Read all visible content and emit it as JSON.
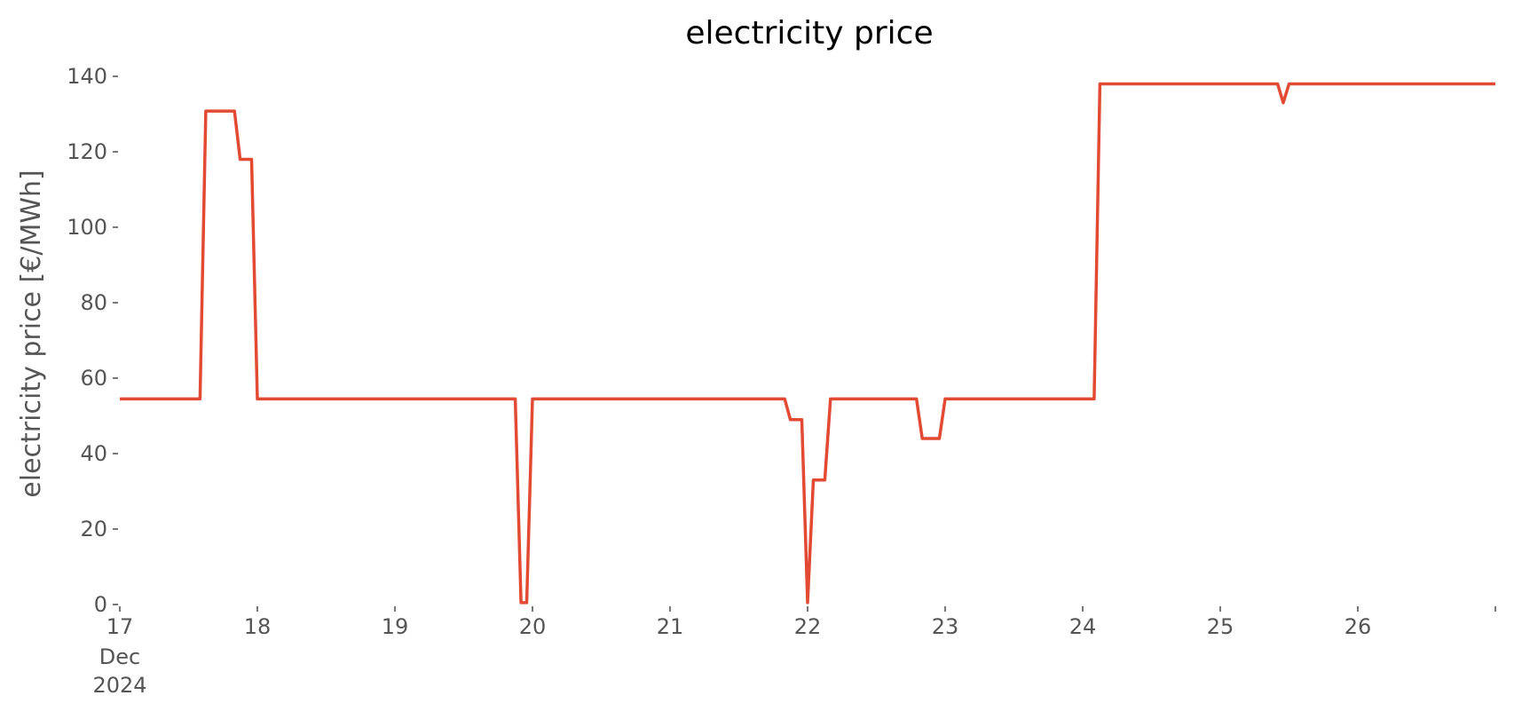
{
  "chart_data": {
    "type": "line",
    "title": "electricity price",
    "xlabel": "",
    "ylabel": "electricity price [€/MWh]",
    "ylim": [
      0,
      140
    ],
    "xlim": [
      "2024-12-17T00:00",
      "2024-12-27T00:00"
    ],
    "y_ticks": [
      0,
      20,
      40,
      60,
      80,
      100,
      120,
      140
    ],
    "x_ticks": [
      {
        "x": "2024-12-17T00:00",
        "label": "17",
        "sublabels": [
          "Dec",
          "2024"
        ]
      },
      {
        "x": "2024-12-18T00:00",
        "label": "18"
      },
      {
        "x": "2024-12-19T00:00",
        "label": "19"
      },
      {
        "x": "2024-12-20T00:00",
        "label": "20"
      },
      {
        "x": "2024-12-21T00:00",
        "label": "21"
      },
      {
        "x": "2024-12-22T00:00",
        "label": "22"
      },
      {
        "x": "2024-12-23T00:00",
        "label": "23"
      },
      {
        "x": "2024-12-24T00:00",
        "label": "24"
      },
      {
        "x": "2024-12-25T00:00",
        "label": "25"
      },
      {
        "x": "2024-12-26T00:00",
        "label": "26"
      },
      {
        "x": "2024-12-27T00:00",
        "label": ""
      }
    ],
    "grid": false,
    "series": [
      {
        "color": "#e24a33",
        "points": [
          {
            "x": "2024-12-17T00:00",
            "y": 54.5
          },
          {
            "x": "2024-12-17T14:00",
            "y": 54.5
          },
          {
            "x": "2024-12-17T15:00",
            "y": 130.8
          },
          {
            "x": "2024-12-17T20:00",
            "y": 130.8
          },
          {
            "x": "2024-12-17T21:00",
            "y": 118
          },
          {
            "x": "2024-12-17T23:00",
            "y": 118
          },
          {
            "x": "2024-12-18T00:00",
            "y": 54.5
          },
          {
            "x": "2024-12-19T21:00",
            "y": 54.5
          },
          {
            "x": "2024-12-19T22:00",
            "y": 0.5
          },
          {
            "x": "2024-12-19T23:00",
            "y": 0.5
          },
          {
            "x": "2024-12-20T00:00",
            "y": 54.5
          },
          {
            "x": "2024-12-21T20:00",
            "y": 54.5
          },
          {
            "x": "2024-12-21T21:00",
            "y": 49
          },
          {
            "x": "2024-12-21T23:00",
            "y": 49
          },
          {
            "x": "2024-12-22T00:00",
            "y": 0.5
          },
          {
            "x": "2024-12-22T01:00",
            "y": 33
          },
          {
            "x": "2024-12-22T03:00",
            "y": 33
          },
          {
            "x": "2024-12-22T04:00",
            "y": 54.5
          },
          {
            "x": "2024-12-22T19:00",
            "y": 54.5
          },
          {
            "x": "2024-12-22T20:00",
            "y": 44
          },
          {
            "x": "2024-12-22T23:00",
            "y": 44
          },
          {
            "x": "2024-12-23T00:00",
            "y": 54.5
          },
          {
            "x": "2024-12-24T02:00",
            "y": 54.5
          },
          {
            "x": "2024-12-24T03:00",
            "y": 138
          },
          {
            "x": "2024-12-25T10:00",
            "y": 138
          },
          {
            "x": "2024-12-25T11:00",
            "y": 133
          },
          {
            "x": "2024-12-25T12:00",
            "y": 138
          },
          {
            "x": "2024-12-27T00:00",
            "y": 138
          }
        ]
      }
    ]
  }
}
